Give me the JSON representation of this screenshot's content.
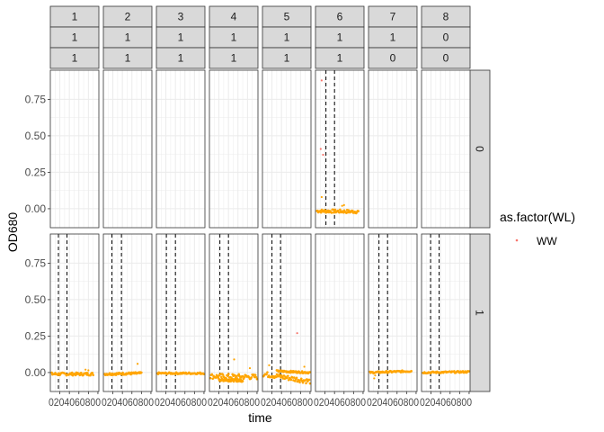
{
  "chart_data": {
    "type": "scatter",
    "xlabel": "time",
    "ylabel": "OD680",
    "ylim": [
      -0.13,
      0.95
    ],
    "y_ticks": [
      0.0,
      0.25,
      0.5,
      0.75
    ],
    "y_tick_labels": [
      "0.00",
      "0.25",
      "0.50",
      "0.75"
    ],
    "xlim": [
      0,
      1020
    ],
    "x_ticks": [
      20,
      40,
      60,
      80,
      100
    ],
    "x_tick_labels": [
      "020",
      "040",
      "060",
      "080",
      "100"
    ],
    "x_tick_label_run": "0204060800",
    "column_strips": [
      [
        "1",
        "1",
        "1"
      ],
      [
        "2",
        "1",
        "1"
      ],
      [
        "3",
        "1",
        "1"
      ],
      [
        "4",
        "1",
        "1"
      ],
      [
        "5",
        "1",
        "1"
      ],
      [
        "6",
        "1",
        "1"
      ],
      [
        "7",
        "1",
        "0"
      ],
      [
        "8",
        "0",
        "0"
      ]
    ],
    "row_strips": [
      "0",
      "1"
    ],
    "grid": true,
    "legend": {
      "title": "as.factor(WL)",
      "position": "right",
      "entries": [
        {
          "label": "WW",
          "color": "#F8766D"
        }
      ]
    },
    "colors": {
      "orange": "#FFA500",
      "salmon": "#F8766D",
      "strip_fill": "#D9D9D9",
      "grid": "#EBEBEB"
    },
    "panels": [
      {
        "row": 0,
        "col": 5,
        "vlines": [
          220,
          400
        ],
        "series": [
          {
            "x0": 30,
            "x1": 900,
            "y_start": -0.015,
            "y_end": -0.02,
            "noise": 0.012
          }
        ],
        "points": [
          {
            "x": 130,
            "y": 0.88
          },
          {
            "x": 110,
            "y": 0.41
          },
          {
            "x": 160,
            "y": 0.37
          },
          {
            "x": 130,
            "y": 0.08
          },
          {
            "x": 560,
            "y": 0.02
          },
          {
            "x": 600,
            "y": 0.025
          }
        ]
      },
      {
        "row": 1,
        "col": 0,
        "vlines": [
          170,
          350
        ],
        "series": [
          {
            "x0": 30,
            "x1": 900,
            "y_start": -0.01,
            "y_end": -0.01,
            "noise": 0.01
          }
        ],
        "points": [
          {
            "x": 740,
            "y": 0.02
          },
          {
            "x": 800,
            "y": 0.015
          }
        ]
      },
      {
        "row": 1,
        "col": 1,
        "vlines": [
          180,
          380
        ],
        "series": [
          {
            "x0": 30,
            "x1": 800,
            "y_start": -0.01,
            "y_end": -0.005,
            "noise": 0.008
          }
        ],
        "points": [
          {
            "x": 720,
            "y": 0.06
          }
        ]
      },
      {
        "row": 1,
        "col": 2,
        "vlines": [
          210,
          400
        ],
        "series": [
          {
            "x0": 20,
            "x1": 1000,
            "y_start": -0.005,
            "y_end": -0.005,
            "noise": 0.006
          }
        ],
        "points": []
      },
      {
        "row": 1,
        "col": 3,
        "vlines": [
          220,
          400
        ],
        "series": [
          {
            "x0": 20,
            "x1": 1000,
            "y_start": -0.025,
            "y_end": -0.03,
            "noise": 0.018
          },
          {
            "x0": 200,
            "x1": 700,
            "y_start": -0.05,
            "y_end": -0.055,
            "noise": 0.008
          }
        ],
        "points": [
          {
            "x": 520,
            "y": 0.09
          },
          {
            "x": 850,
            "y": 0.03
          }
        ]
      },
      {
        "row": 1,
        "col": 4,
        "vlines": [
          200,
          380
        ],
        "series": [
          {
            "x0": 20,
            "x1": 1000,
            "y_start": -0.01,
            "y_end": -0.06,
            "noise": 0.018
          },
          {
            "x0": 300,
            "x1": 1000,
            "y_start": 0.01,
            "y_end": 0.0,
            "noise": 0.006
          }
        ],
        "points": [
          {
            "x": 730,
            "y": 0.27
          },
          {
            "x": 140,
            "y": 0.05
          },
          {
            "x": 880,
            "y": 0.04
          }
        ]
      },
      {
        "row": 1,
        "col": 6,
        "vlines": [
          220,
          400
        ],
        "series": [
          {
            "x0": 30,
            "x1": 900,
            "y_start": 0.0,
            "y_end": 0.01,
            "noise": 0.006
          }
        ],
        "points": [
          {
            "x": 120,
            "y": -0.04
          },
          {
            "x": 140,
            "y": -0.02
          }
        ]
      },
      {
        "row": 1,
        "col": 7,
        "vlines": [
          190,
          370
        ],
        "series": [
          {
            "x0": 30,
            "x1": 1000,
            "y_start": 0.0,
            "y_end": 0.005,
            "noise": 0.006
          }
        ],
        "points": []
      }
    ]
  }
}
